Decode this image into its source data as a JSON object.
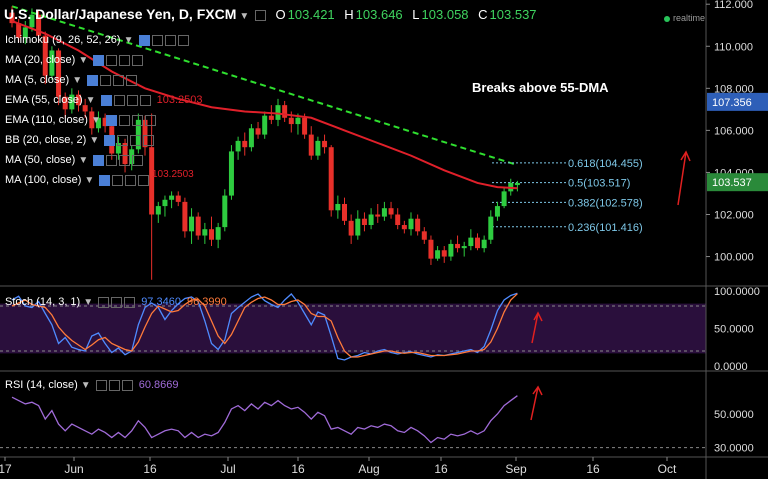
{
  "header": {
    "symbol": "U.S. Dollar/Japanese Yen, D, FXCM",
    "open_label": "O",
    "open": "103.421",
    "high_label": "H",
    "high": "103.646",
    "low_label": "L",
    "low": "103.058",
    "close_label": "C",
    "close": "103.537",
    "realtime": "realtime"
  },
  "indicators": [
    {
      "label": "Ichimoku (9, 26, 52, 26)",
      "value": ""
    },
    {
      "label": "MA (20, close)",
      "value": ""
    },
    {
      "label": "MA (5, close)",
      "value": ""
    },
    {
      "label": "EMA (55, close)",
      "value": "103.2503"
    },
    {
      "label": "EMA (110, close)",
      "value": ""
    },
    {
      "label": "BB (20, close, 2)",
      "value": ""
    },
    {
      "label": "MA (50, close)",
      "value": ""
    },
    {
      "label": "MA (100, close)",
      "value": ""
    }
  ],
  "stoch": {
    "label": "Stoch (14, 3, 1)",
    "k": "97.3460",
    "d": "96.3990"
  },
  "rsi": {
    "label": "RSI (14, close)",
    "value": "60.8669"
  },
  "colors": {
    "background": "#000000",
    "bull": "#2ecc40",
    "bear": "#e8302a",
    "ema": "#e0202a",
    "trend": "#2fe02f",
    "fib": "#7ec8e8",
    "stoch_k": "#4f8bff",
    "stoch_d": "#ff7a3a",
    "stoch_band": "#2a0f3c",
    "rsi": "#a06bd8",
    "price_tag": "#2e5fb8",
    "last_tag": "#2a8a3a"
  },
  "chart_data": [
    {
      "type": "candlestick",
      "title": "U.S. Dollar/Japanese Yen, D, FXCM",
      "annotation": "Breaks above 55-DMA",
      "x_ticks": [
        "17",
        "Jun",
        "16",
        "Jul",
        "16",
        "Aug",
        "16",
        "Sep",
        "16",
        "Oct"
      ],
      "y_ticks": [
        "112.000",
        "110.000",
        "108.000",
        "106.000",
        "104.000",
        "102.000",
        "100.000"
      ],
      "ylim": [
        98.6,
        112.2
      ],
      "current_price": "107.356",
      "last_price": "103.537",
      "ema55_value": "103.2503",
      "fibonacci": [
        {
          "label": "0.618(104.455)",
          "level": 104.455
        },
        {
          "label": "0.5(103.517)",
          "level": 103.517
        },
        {
          "label": "0.382(102.578)",
          "level": 102.578
        },
        {
          "label": "0.236(101.416)",
          "level": 101.416
        }
      ],
      "candles": [
        [
          111.6,
          111.9,
          110.9,
          111.1
        ],
        [
          111.1,
          111.3,
          110.2,
          110.4
        ],
        [
          110.4,
          111.2,
          110.1,
          110.9
        ],
        [
          110.9,
          111.8,
          110.7,
          111.5
        ],
        [
          111.5,
          111.7,
          110.2,
          110.5
        ],
        [
          110.5,
          110.7,
          108.2,
          108.6
        ],
        [
          108.6,
          110.0,
          108.4,
          109.8
        ],
        [
          109.8,
          109.9,
          107.2,
          107.6
        ],
        [
          107.6,
          107.8,
          106.6,
          107.0
        ],
        [
          107.0,
          108.0,
          106.8,
          107.7
        ],
        [
          107.7,
          107.9,
          106.9,
          107.2
        ],
        [
          107.2,
          107.5,
          106.6,
          106.9
        ],
        [
          106.9,
          107.1,
          105.8,
          106.1
        ],
        [
          106.1,
          106.9,
          105.9,
          106.6
        ],
        [
          106.6,
          106.8,
          105.9,
          106.2
        ],
        [
          106.2,
          106.6,
          104.6,
          104.9
        ],
        [
          104.9,
          105.7,
          104.6,
          105.4
        ],
        [
          105.4,
          105.6,
          104.0,
          104.4
        ],
        [
          104.4,
          105.3,
          104.1,
          105.1
        ],
        [
          105.1,
          106.8,
          104.9,
          106.5
        ],
        [
          106.5,
          106.7,
          104.8,
          105.2
        ],
        [
          105.2,
          106.8,
          98.9,
          102.0
        ],
        [
          102.0,
          102.6,
          101.6,
          102.4
        ],
        [
          102.4,
          102.9,
          101.9,
          102.7
        ],
        [
          102.7,
          103.1,
          102.3,
          102.9
        ],
        [
          102.9,
          103.1,
          102.4,
          102.6
        ],
        [
          102.6,
          102.8,
          100.9,
          101.2
        ],
        [
          101.2,
          102.3,
          100.6,
          101.9
        ],
        [
          101.9,
          102.1,
          100.8,
          101.0
        ],
        [
          101.0,
          101.6,
          100.6,
          101.3
        ],
        [
          101.3,
          101.9,
          100.5,
          100.8
        ],
        [
          100.8,
          101.6,
          100.4,
          101.4
        ],
        [
          101.4,
          103.2,
          101.2,
          102.9
        ],
        [
          102.9,
          105.3,
          102.7,
          105.0
        ],
        [
          105.0,
          105.7,
          104.6,
          105.5
        ],
        [
          105.5,
          105.9,
          104.8,
          105.2
        ],
        [
          105.2,
          106.3,
          105.0,
          106.1
        ],
        [
          106.1,
          106.4,
          105.6,
          105.8
        ],
        [
          105.8,
          106.9,
          105.6,
          106.7
        ],
        [
          106.7,
          107.2,
          106.3,
          106.5
        ],
        [
          106.5,
          107.5,
          106.2,
          107.2
        ],
        [
          107.2,
          107.4,
          106.4,
          106.6
        ],
        [
          106.6,
          106.9,
          105.9,
          106.3
        ],
        [
          106.3,
          106.8,
          105.8,
          106.6
        ],
        [
          106.6,
          106.8,
          105.6,
          105.8
        ],
        [
          105.8,
          106.2,
          104.6,
          104.8
        ],
        [
          104.8,
          105.7,
          104.6,
          105.5
        ],
        [
          105.5,
          105.8,
          104.9,
          105.2
        ],
        [
          105.2,
          105.3,
          101.9,
          102.2
        ],
        [
          102.2,
          102.9,
          101.8,
          102.5
        ],
        [
          102.5,
          102.8,
          101.5,
          101.7
        ],
        [
          101.7,
          102.0,
          100.6,
          101.0
        ],
        [
          101.0,
          102.2,
          100.8,
          101.8
        ],
        [
          101.8,
          102.1,
          101.2,
          101.5
        ],
        [
          101.5,
          102.3,
          101.3,
          102.0
        ],
        [
          102.0,
          102.5,
          101.6,
          101.9
        ],
        [
          101.9,
          102.6,
          101.7,
          102.3
        ],
        [
          102.3,
          102.6,
          101.8,
          102.0
        ],
        [
          102.0,
          102.3,
          101.3,
          101.5
        ],
        [
          101.5,
          101.7,
          101.1,
          101.3
        ],
        [
          101.3,
          102.1,
          101.0,
          101.8
        ],
        [
          101.8,
          102.0,
          101.0,
          101.2
        ],
        [
          101.2,
          101.4,
          100.6,
          100.8
        ],
        [
          100.8,
          101.0,
          99.6,
          99.9
        ],
        [
          99.9,
          100.5,
          99.8,
          100.3
        ],
        [
          100.3,
          100.5,
          99.7,
          100.0
        ],
        [
          100.0,
          100.8,
          99.8,
          100.6
        ],
        [
          100.6,
          101.0,
          100.2,
          100.4
        ],
        [
          100.4,
          100.7,
          100.0,
          100.5
        ],
        [
          100.5,
          101.3,
          100.3,
          100.9
        ],
        [
          100.9,
          101.1,
          100.3,
          100.4
        ],
        [
          100.4,
          101.0,
          100.2,
          100.8
        ],
        [
          100.8,
          102.2,
          100.6,
          101.9
        ],
        [
          101.9,
          102.6,
          101.7,
          102.4
        ],
        [
          102.4,
          103.3,
          102.3,
          103.1
        ],
        [
          103.1,
          103.7,
          102.9,
          103.5
        ],
        [
          103.4,
          103.6,
          103.1,
          103.5
        ]
      ],
      "ema55": [
        [
          0,
          111.2
        ],
        [
          5,
          110.6
        ],
        [
          10,
          109.8
        ],
        [
          15,
          108.8
        ],
        [
          20,
          108.0
        ],
        [
          25,
          107.5
        ],
        [
          30,
          107.1
        ],
        [
          35,
          106.9
        ],
        [
          40,
          106.8
        ],
        [
          45,
          106.6
        ],
        [
          50,
          106.0
        ],
        [
          55,
          105.4
        ],
        [
          60,
          104.8
        ],
        [
          65,
          104.1
        ],
        [
          70,
          103.5
        ],
        [
          73,
          103.3
        ],
        [
          76,
          103.25
        ]
      ],
      "trendline": [
        [
          0,
          111.9
        ],
        [
          76,
          104.35
        ]
      ]
    },
    {
      "type": "line",
      "title": "Stoch (14, 3, 1)",
      "y_ticks": [
        "100.0000",
        "50.0000",
        "0.0000"
      ],
      "ylim": [
        0,
        100
      ],
      "levels": [
        80,
        20
      ],
      "series": [
        {
          "name": "%K",
          "values": [
            88,
            93,
            80,
            78,
            86,
            70,
            55,
            30,
            38,
            25,
            22,
            20,
            40,
            44,
            30,
            18,
            24,
            15,
            20,
            55,
            78,
            84,
            78,
            62,
            74,
            83,
            90,
            92,
            86,
            60,
            30,
            22,
            35,
            70,
            78,
            85,
            92,
            96,
            87,
            82,
            78,
            88,
            96,
            85,
            70,
            55,
            72,
            68,
            40,
            10,
            8,
            12,
            14,
            18,
            16,
            20,
            22,
            18,
            16,
            18,
            19,
            16,
            14,
            12,
            15,
            14,
            16,
            18,
            20,
            22,
            18,
            26,
            48,
            74,
            88,
            94,
            97
          ]
        },
        {
          "name": "%D",
          "values": [
            80,
            84,
            88,
            82,
            80,
            78,
            68,
            52,
            42,
            34,
            28,
            22,
            28,
            35,
            38,
            30,
            26,
            22,
            20,
            32,
            52,
            70,
            80,
            76,
            72,
            74,
            82,
            88,
            89,
            80,
            60,
            40,
            30,
            42,
            60,
            78,
            85,
            90,
            92,
            88,
            82,
            82,
            86,
            88,
            82,
            70,
            66,
            66,
            60,
            38,
            20,
            12,
            12,
            14,
            16,
            18,
            20,
            20,
            18,
            17,
            18,
            18,
            16,
            14,
            14,
            14,
            15,
            16,
            18,
            20,
            20,
            22,
            32,
            50,
            72,
            88,
            96.4
          ]
        }
      ]
    },
    {
      "type": "line",
      "title": "RSI (14, close)",
      "y_ticks": [
        "50.0000",
        "30.0000"
      ],
      "ylim": [
        25,
        75
      ],
      "levels": [
        30
      ],
      "series": [
        {
          "name": "RSI",
          "values": [
            60,
            58,
            56,
            57,
            55,
            47,
            52,
            44,
            40,
            44,
            42,
            40,
            38,
            41,
            39,
            36,
            39,
            36,
            40,
            46,
            42,
            36,
            38,
            40,
            41,
            40,
            36,
            39,
            36,
            38,
            37,
            39,
            45,
            53,
            55,
            52,
            56,
            53,
            57,
            55,
            58,
            55,
            53,
            54,
            51,
            47,
            51,
            49,
            41,
            42,
            40,
            38,
            42,
            41,
            43,
            42,
            44,
            43,
            40,
            39,
            42,
            40,
            37,
            33,
            36,
            35,
            38,
            37,
            38,
            40,
            38,
            40,
            46,
            50,
            55,
            58,
            60.9
          ]
        }
      ]
    }
  ]
}
